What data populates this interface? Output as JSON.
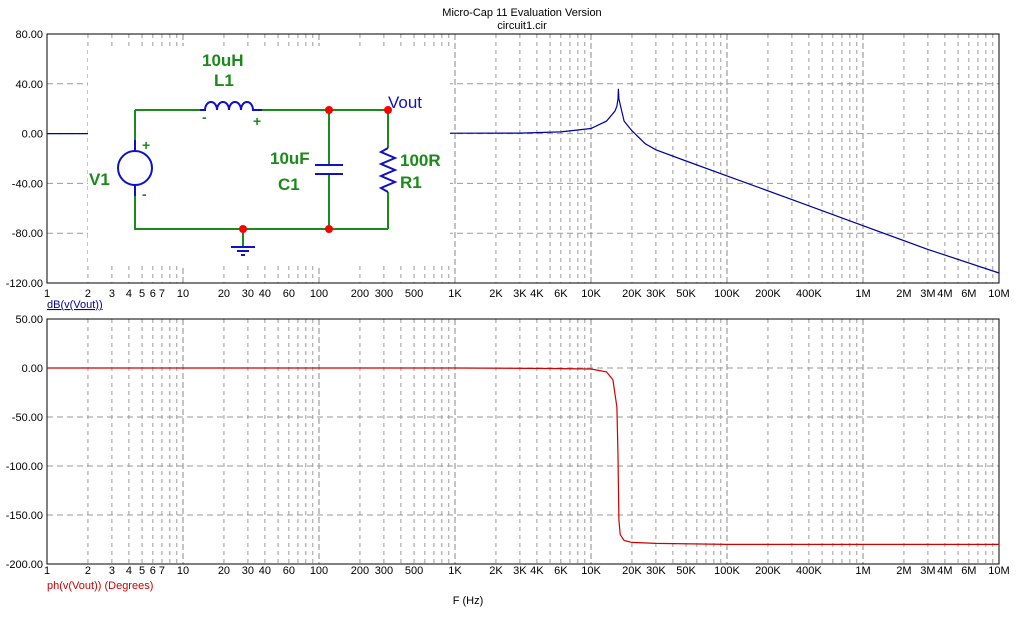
{
  "app": {
    "title": "Micro-Cap 11 Evaluation Version",
    "file": "circuit1.cir"
  },
  "colors": {
    "magnitude": "#0000a0",
    "phase": "#d00000",
    "circuit_wire": "#1a8a1a",
    "node": "#ff0000",
    "grid": "#9a9a9a"
  },
  "chart_data": [
    {
      "type": "line",
      "name": "magnitude-plot",
      "xscale": "log",
      "xlim": [
        1,
        10000000
      ],
      "ylim": [
        -120,
        80
      ],
      "yticks": [
        "80.00",
        "40.00",
        "0.00",
        "-40.00",
        "-80.00",
        "-120.00"
      ],
      "xticks": [
        "1",
        "2",
        "3",
        "4",
        "5",
        "6",
        "7",
        "10",
        "20",
        "30",
        "40",
        "60",
        "100",
        "200",
        "300",
        "500",
        "1K",
        "2K",
        "3K",
        "4K",
        "6K",
        "10K",
        "20K",
        "30K",
        "50K",
        "100K",
        "200K",
        "400K",
        "1M",
        "2M",
        "3M",
        "4M",
        "6M",
        "10M"
      ],
      "ylabel": "dB(v(Vout))",
      "series": [
        {
          "name": "dB(v(Vout))",
          "color": "#0000a0",
          "x": [
            1,
            10,
            100,
            1000,
            3000,
            6000,
            10000,
            13000,
            15000,
            15500,
            15800,
            15915,
            16030,
            16500,
            17500,
            20000,
            25000,
            30000,
            50000,
            100000,
            300000,
            1000000,
            3000000,
            10000000
          ],
          "y": [
            0.0,
            0.0,
            0.1,
            0.3,
            0.4,
            1.4,
            4.1,
            10.0,
            18.0,
            22.0,
            28.0,
            36.0,
            28.0,
            22.0,
            10.0,
            2.3,
            -8.0,
            -13.0,
            -22.0,
            -34.0,
            -53.0,
            -74.0,
            -93.0,
            -112.0
          ]
        }
      ]
    },
    {
      "type": "line",
      "name": "phase-plot",
      "xscale": "log",
      "xlim": [
        1,
        10000000
      ],
      "ylim": [
        -200,
        50
      ],
      "yticks": [
        "50.00",
        "0.00",
        "-50.00",
        "-100.00",
        "-150.00",
        "-200.00"
      ],
      "xticks": [
        "1",
        "2",
        "3",
        "4",
        "5",
        "6",
        "7",
        "10",
        "20",
        "30",
        "40",
        "60",
        "100",
        "200",
        "300",
        "500",
        "1K",
        "2K",
        "3K",
        "4K",
        "6K",
        "10K",
        "20K",
        "30K",
        "50K",
        "100K",
        "200K",
        "400K",
        "1M",
        "2M",
        "3M",
        "4M",
        "6M",
        "10M"
      ],
      "xlabel": "F (Hz)",
      "ylabel": "ph(v(Vout)) (Degrees)",
      "series": [
        {
          "name": "ph(v(Vout)) (Degrees)",
          "color": "#d00000",
          "x": [
            1,
            100,
            1000,
            5000,
            10000,
            13000,
            14500,
            15500,
            15800,
            15915,
            16030,
            16400,
            17500,
            20000,
            30000,
            100000,
            1000000,
            10000000
          ],
          "y": [
            0,
            0,
            0,
            -0.5,
            -1,
            -4,
            -12,
            -40,
            -90,
            -120,
            -155,
            -170,
            -176,
            -178,
            -179,
            -180,
            -180,
            -180
          ]
        }
      ]
    }
  ],
  "schematic": {
    "inductor_value": "10uH",
    "inductor_name": "L1",
    "source_name": "V1",
    "capacitor_value": "10uF",
    "capacitor_name": "C1",
    "resistor_value": "100R",
    "resistor_name": "R1",
    "output_label": "Vout",
    "plus": "+",
    "minus": "-"
  }
}
